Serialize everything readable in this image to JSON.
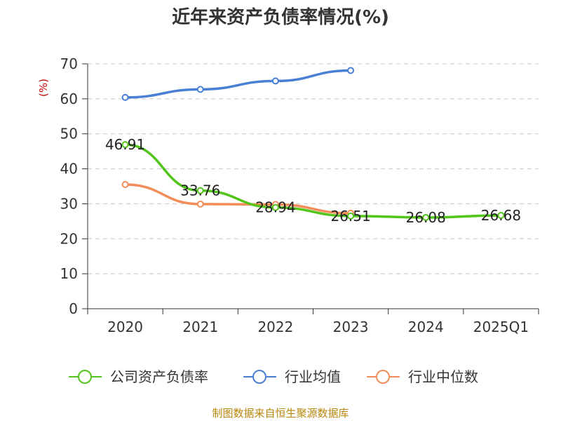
{
  "chart_data": {
    "type": "line",
    "title": "近年来资产负债率情况(%)",
    "ylabel": "(%)",
    "xlabel": "",
    "categories": [
      "2020",
      "2021",
      "2022",
      "2023",
      "2024",
      "2025Q1"
    ],
    "ylim": [
      0,
      70
    ],
    "yticks": [
      0,
      10,
      20,
      30,
      40,
      50,
      60,
      70
    ],
    "grid": true,
    "legend_position": "bottom",
    "series": [
      {
        "name": "公司资产负债率",
        "color": "#52c41a",
        "values": [
          46.91,
          33.76,
          28.94,
          26.51,
          26.08,
          26.68
        ],
        "labels": [
          "46.91",
          "33.76",
          "28.94",
          "26.51",
          "26.08",
          "26.68"
        ]
      },
      {
        "name": "行业均值",
        "color": "#4a7fd6",
        "values": [
          60.4,
          62.7,
          65.1,
          68.1,
          null,
          null
        ]
      },
      {
        "name": "行业中位数",
        "color": "#f28c58",
        "values": [
          35.5,
          29.9,
          29.8,
          27.3,
          null,
          null
        ]
      }
    ]
  },
  "source": "制图数据来自恒生聚源数据库"
}
